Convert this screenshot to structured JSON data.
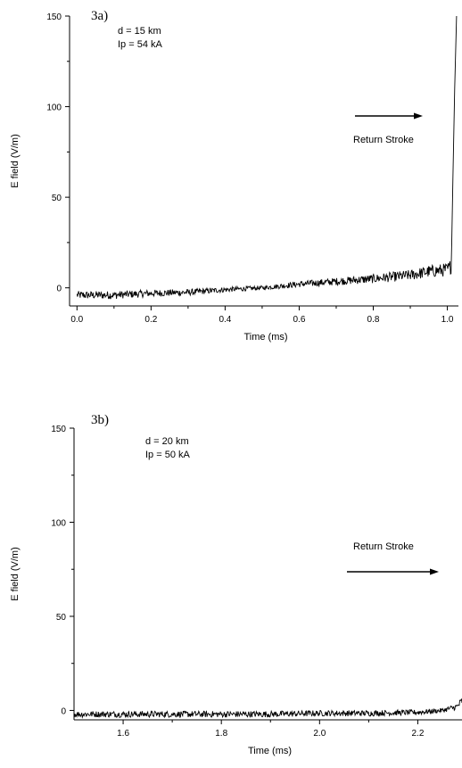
{
  "chart_data": [
    {
      "type": "line",
      "panel_label": "3a)",
      "annotations": [
        "d = 15 km",
        "Ip = 54 kA"
      ],
      "arrow_label": "Return Stroke",
      "xlabel": "Time (ms)",
      "ylabel": "E field (V/m)",
      "xlim": [
        -0.02,
        1.03
      ],
      "ylim": [
        -10,
        150
      ],
      "xticks": [
        0.0,
        0.2,
        0.4,
        0.6,
        0.8,
        1.0
      ],
      "xtick_labels": [
        "0.0",
        "0.2",
        "0.4",
        "0.6",
        "0.8",
        "1.0"
      ],
      "yticks": [
        0,
        50,
        100,
        150
      ],
      "ytick_labels": [
        "0",
        "50",
        "100",
        "150"
      ],
      "grid": false,
      "series": [
        {
          "x": [
            0.0,
            0.1,
            0.2,
            0.3,
            0.4,
            0.5,
            0.6,
            0.7,
            0.8,
            0.9,
            0.95,
            1.0,
            1.01,
            1.012,
            1.015,
            1.02,
            1.025
          ],
          "y": [
            -4,
            -4,
            -3,
            -2.5,
            -1,
            0,
            2,
            3.5,
            5,
            7,
            9,
            10,
            12,
            25,
            60,
            110,
            150
          ]
        }
      ]
    },
    {
      "type": "line",
      "panel_label": "3b)",
      "annotations": [
        "d = 20 km",
        "Ip = 50 kA"
      ],
      "arrow_label": "Return Stroke",
      "xlabel": "Time (ms)",
      "ylabel": "E field (V/m)",
      "xlim": [
        1.5,
        2.29
      ],
      "ylim": [
        -5,
        150
      ],
      "xticks": [
        1.6,
        1.8,
        2.0,
        2.2
      ],
      "xtick_labels": [
        "1.6",
        "1.8",
        "2.0",
        "2.2"
      ],
      "yticks": [
        0,
        50,
        100,
        150
      ],
      "ytick_labels": [
        "0",
        "50",
        "100",
        "150"
      ],
      "grid": false,
      "series": [
        {
          "x": [
            1.5,
            1.6,
            1.7,
            1.8,
            1.9,
            2.0,
            2.1,
            2.2,
            2.25,
            2.28,
            2.29
          ],
          "y": [
            -2,
            -2,
            -2,
            -2,
            -2,
            -1.5,
            -1.5,
            -1,
            0,
            2,
            5
          ]
        }
      ]
    }
  ]
}
